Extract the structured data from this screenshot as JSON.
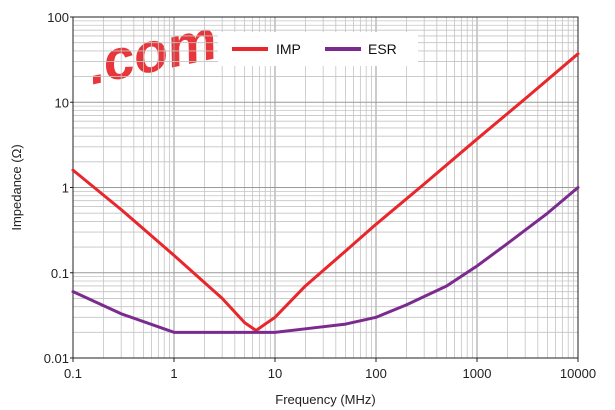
{
  "watermark": ".com",
  "chart_data": {
    "type": "line",
    "xlabel": "Frequency (MHz)",
    "ylabel": "Impedance (Ω)",
    "xscale": "log",
    "yscale": "log",
    "xlim": [
      0.1,
      10000
    ],
    "ylim": [
      0.01,
      100
    ],
    "x_ticks": [
      0.1,
      1,
      10,
      100,
      1000,
      10000
    ],
    "x_tick_labels": [
      "0.1",
      "1",
      "10",
      "100",
      "1000",
      "10000"
    ],
    "y_ticks": [
      0.01,
      0.1,
      1,
      10,
      100
    ],
    "y_tick_labels": [
      "0.01",
      "0.1",
      "1",
      "10",
      "100"
    ],
    "grid": true,
    "legend_position": "top-center",
    "series": [
      {
        "name": "IMP",
        "color": "#e8262b",
        "x": [
          0.1,
          0.3,
          1,
          3,
          5,
          6.5,
          8,
          10,
          20,
          50,
          100,
          300,
          1000,
          3000,
          10000
        ],
        "y": [
          1.6,
          0.55,
          0.16,
          0.05,
          0.026,
          0.021,
          0.025,
          0.03,
          0.07,
          0.18,
          0.37,
          1.1,
          3.7,
          11,
          37
        ]
      },
      {
        "name": "ESR",
        "color": "#7b2b8e",
        "x": [
          0.1,
          0.3,
          1,
          3,
          10,
          20,
          50,
          100,
          200,
          500,
          1000,
          2000,
          5000,
          10000
        ],
        "y": [
          0.06,
          0.033,
          0.02,
          0.02,
          0.02,
          0.022,
          0.025,
          0.03,
          0.042,
          0.07,
          0.12,
          0.22,
          0.5,
          1.0
        ]
      }
    ]
  }
}
